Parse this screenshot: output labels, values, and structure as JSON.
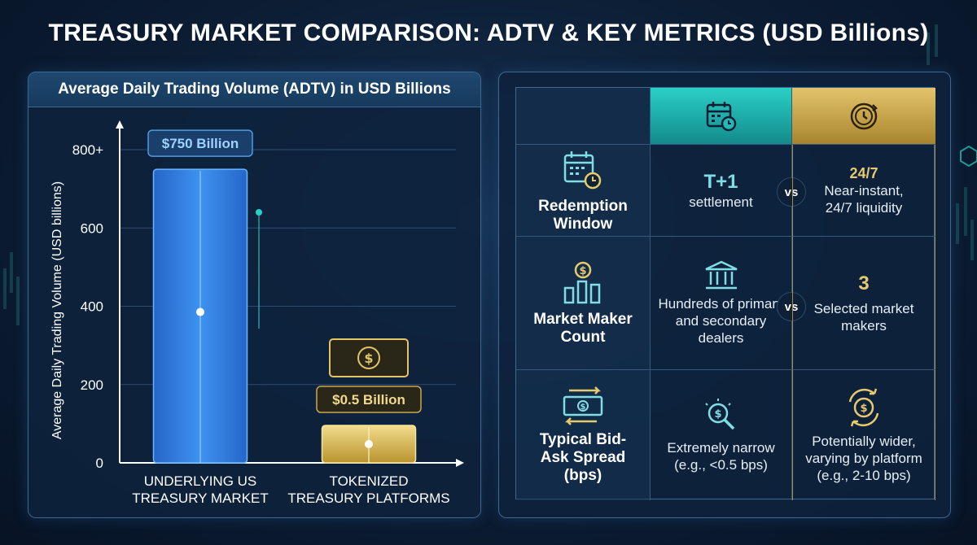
{
  "title": "TREASURY MARKET COMPARISON: ADTV & KEY METRICS (USD Billions)",
  "chart_data": {
    "type": "bar",
    "title": "Average Daily Trading Volume (ADTV) in USD Billions",
    "ylabel": "Average Daily Trading Volume (USD billions)",
    "xlabel": "",
    "categories": [
      "UNDERLYING US TREASURY MARKET",
      "TOKENIZED TREASURY PLATFORMS"
    ],
    "category_lines": [
      [
        "UNDERLYING US",
        "TREASURY MARKET"
      ],
      [
        "TOKENIZED",
        "TREASURY PLATFORMS"
      ]
    ],
    "values": [
      750,
      0.5
    ],
    "data_labels": [
      "$750 Billion",
      "$0.5 Billion"
    ],
    "yticks": [
      0,
      200,
      400,
      600,
      800
    ],
    "ytick_labels": [
      "0",
      "200",
      "400",
      "600",
      "800+"
    ],
    "ylim": [
      0,
      800
    ],
    "grid": true,
    "bar_colors": [
      "#2f7fe0",
      "#e3c46a"
    ]
  },
  "comparison": {
    "header_icons": [
      "calendar-clock-icon",
      "clock-refresh-icon"
    ],
    "vs_label": "vs",
    "rows": [
      {
        "metric": "Redemption Window",
        "metric_icon": "calendar-clock-icon",
        "traditional_main": "T+1",
        "traditional_detail": "settlement",
        "tokenized_main": "24/7",
        "tokenized_detail": "Near-instant, 24/7 liquidity"
      },
      {
        "metric": "Market Maker Count",
        "metric_icon": "dollar-bar-chart-icon",
        "traditional_icon": "bank-icon",
        "traditional_detail": "Hundreds of primary and secondary dealers",
        "tokenized_main": "3",
        "tokenized_detail": "Selected market makers"
      },
      {
        "metric": "Typical Bid-Ask Spread (bps)",
        "metric_icon": "banknote-arrows-icon",
        "traditional_icon": "magnifier-dollar-icon",
        "traditional_detail": "Extremely narrow (e.g., <0.5 bps)",
        "tokenized_icon": "dollar-cycle-icon",
        "tokenized_detail": "Potentially wider, varying by platform (e.g., 2-10 bps)"
      }
    ]
  },
  "colors": {
    "background": "#0c1d34",
    "panel_border": "#3d6890",
    "teal_accent": "#2ad0c6",
    "gold_accent": "#e3c46c"
  }
}
